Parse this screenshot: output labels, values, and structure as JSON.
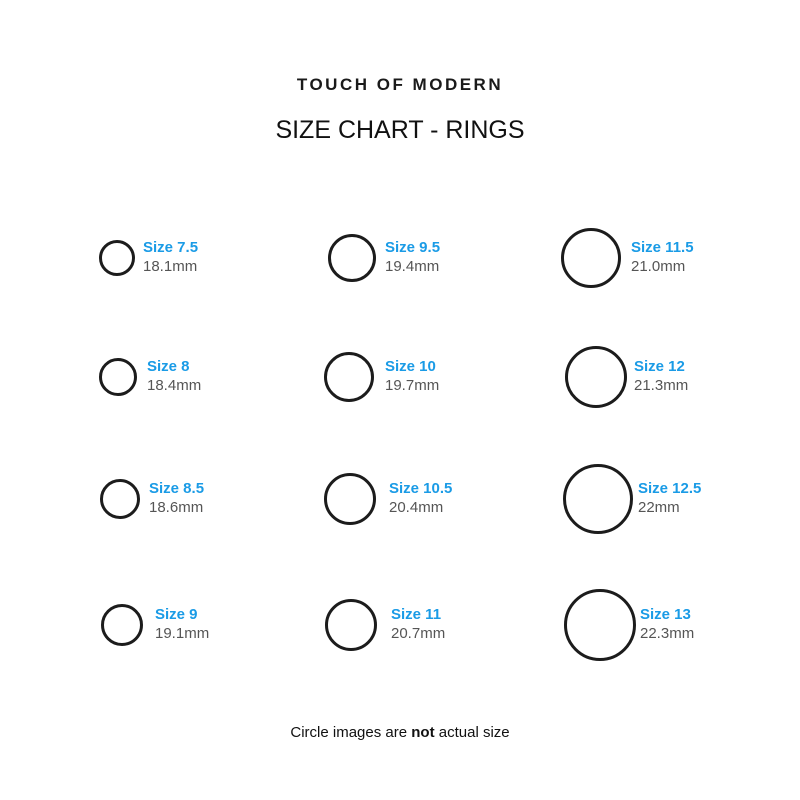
{
  "brand": "TOUCH OF MODERN",
  "title": "SIZE CHART - RINGS",
  "colors": {
    "size_label": "#1a9be6",
    "mm_label": "#555555",
    "ring": "#1c1c1c"
  },
  "rings": [
    {
      "size": "Size 7.5",
      "mm": "18.1mm"
    },
    {
      "size": "Size 8",
      "mm": "18.4mm"
    },
    {
      "size": "Size 8.5",
      "mm": "18.6mm"
    },
    {
      "size": "Size 9",
      "mm": "19.1mm"
    },
    {
      "size": "Size 9.5",
      "mm": "19.4mm"
    },
    {
      "size": "Size 10",
      "mm": "19.7mm"
    },
    {
      "size": "Size 10.5",
      "mm": "20.4mm"
    },
    {
      "size": "Size 11",
      "mm": "20.7mm"
    },
    {
      "size": "Size 11.5",
      "mm": "21.0mm"
    },
    {
      "size": "Size 12",
      "mm": "21.3mm"
    },
    {
      "size": "Size 12.5",
      "mm": "22mm"
    },
    {
      "size": "Size 13",
      "mm": "22.3mm"
    }
  ],
  "note": {
    "before": "Circle images are ",
    "bold": "not",
    "after": " actual size"
  }
}
